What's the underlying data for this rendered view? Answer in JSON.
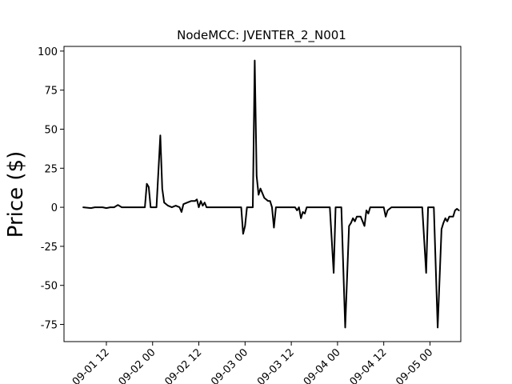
{
  "chart_data": {
    "type": "line",
    "title": "NodeMCC: JVENTER_2_N001",
    "xlabel": "",
    "ylabel": "Price ($)",
    "x_unit": "datetime",
    "xlim": [
      "2022-09-01 01:00",
      "2022-09-05 08:00"
    ],
    "ylim": [
      -86,
      103
    ],
    "x_ticks": [
      {
        "label": "09-01 12",
        "value": "2022-09-01 12:00"
      },
      {
        "label": "09-02 00",
        "value": "2022-09-02 00:00"
      },
      {
        "label": "09-02 12",
        "value": "2022-09-02 12:00"
      },
      {
        "label": "09-03 00",
        "value": "2022-09-03 00:00"
      },
      {
        "label": "09-03 12",
        "value": "2022-09-03 12:00"
      },
      {
        "label": "09-04 00",
        "value": "2022-09-04 00:00"
      },
      {
        "label": "09-04 12",
        "value": "2022-09-04 12:00"
      },
      {
        "label": "09-05 00",
        "value": "2022-09-05 00:00"
      }
    ],
    "y_ticks": [
      100,
      75,
      50,
      25,
      0,
      -25,
      -50,
      -75
    ],
    "grid": false,
    "legend": "none",
    "line_color": "#000000",
    "series": [
      {
        "values": [
          [
            "2022-09-01 06:00",
            0
          ],
          [
            "2022-09-01 08:00",
            -0.5
          ],
          [
            "2022-09-01 09:00",
            0
          ],
          [
            "2022-09-01 11:00",
            0
          ],
          [
            "2022-09-01 12:00",
            -0.5
          ],
          [
            "2022-09-01 13:00",
            0
          ],
          [
            "2022-09-01 14:00",
            0
          ],
          [
            "2022-09-01 15:00",
            1.5
          ],
          [
            "2022-09-01 16:00",
            0
          ],
          [
            "2022-09-01 22:00",
            0
          ],
          [
            "2022-09-01 22:30",
            15
          ],
          [
            "2022-09-01 23:00",
            13
          ],
          [
            "2022-09-01 23:30",
            0
          ],
          [
            "2022-09-02 01:00",
            0
          ],
          [
            "2022-09-02 02:00",
            46
          ],
          [
            "2022-09-02 02:30",
            12
          ],
          [
            "2022-09-02 03:00",
            3
          ],
          [
            "2022-09-02 04:00",
            1
          ],
          [
            "2022-09-02 05:00",
            0
          ],
          [
            "2022-09-02 06:00",
            1
          ],
          [
            "2022-09-02 07:00",
            0
          ],
          [
            "2022-09-02 07:30",
            -3
          ],
          [
            "2022-09-02 08:00",
            2
          ],
          [
            "2022-09-02 09:00",
            3
          ],
          [
            "2022-09-02 10:00",
            4
          ],
          [
            "2022-09-02 11:00",
            4
          ],
          [
            "2022-09-02 11:30",
            5
          ],
          [
            "2022-09-02 12:00",
            0
          ],
          [
            "2022-09-02 12:30",
            4
          ],
          [
            "2022-09-02 13:00",
            1
          ],
          [
            "2022-09-02 13:30",
            3
          ],
          [
            "2022-09-02 14:00",
            0
          ],
          [
            "2022-09-02 15:00",
            0
          ],
          [
            "2022-09-02 23:00",
            0
          ],
          [
            "2022-09-02 23:30",
            -17
          ],
          [
            "2022-09-03 00:00",
            -12
          ],
          [
            "2022-09-03 00:30",
            0
          ],
          [
            "2022-09-03 02:00",
            0
          ],
          [
            "2022-09-03 02:30",
            94
          ],
          [
            "2022-09-03 03:00",
            20
          ],
          [
            "2022-09-03 03:30",
            8
          ],
          [
            "2022-09-03 04:00",
            12
          ],
          [
            "2022-09-03 05:00",
            6
          ],
          [
            "2022-09-03 06:00",
            4
          ],
          [
            "2022-09-03 06:30",
            4
          ],
          [
            "2022-09-03 07:00",
            0
          ],
          [
            "2022-09-03 07:30",
            -13
          ],
          [
            "2022-09-03 08:00",
            0
          ],
          [
            "2022-09-03 13:00",
            0
          ],
          [
            "2022-09-03 13:30",
            -2
          ],
          [
            "2022-09-03 14:00",
            0
          ],
          [
            "2022-09-03 14:30",
            -7
          ],
          [
            "2022-09-03 15:00",
            -3
          ],
          [
            "2022-09-03 15:30",
            -4
          ],
          [
            "2022-09-03 16:00",
            0
          ],
          [
            "2022-09-03 22:00",
            0
          ],
          [
            "2022-09-03 23:00",
            -42
          ],
          [
            "2022-09-03 23:30",
            0
          ],
          [
            "2022-09-04 01:00",
            0
          ],
          [
            "2022-09-04 02:00",
            -77
          ],
          [
            "2022-09-04 03:00",
            -12
          ],
          [
            "2022-09-04 03:30",
            -10
          ],
          [
            "2022-09-04 04:00",
            -7
          ],
          [
            "2022-09-04 04:30",
            -9
          ],
          [
            "2022-09-04 05:00",
            -6
          ],
          [
            "2022-09-04 06:00",
            -6
          ],
          [
            "2022-09-04 07:00",
            -12
          ],
          [
            "2022-09-04 07:30",
            -2
          ],
          [
            "2022-09-04 08:00",
            -4
          ],
          [
            "2022-09-04 08:30",
            0
          ],
          [
            "2022-09-04 12:00",
            0
          ],
          [
            "2022-09-04 12:30",
            -6
          ],
          [
            "2022-09-04 13:00",
            -2
          ],
          [
            "2022-09-04 14:00",
            0
          ],
          [
            "2022-09-04 22:00",
            0
          ],
          [
            "2022-09-04 23:00",
            -42
          ],
          [
            "2022-09-04 23:30",
            0
          ],
          [
            "2022-09-05 01:00",
            0
          ],
          [
            "2022-09-05 02:00",
            -77
          ],
          [
            "2022-09-05 03:00",
            -14
          ],
          [
            "2022-09-05 03:30",
            -10
          ],
          [
            "2022-09-05 04:00",
            -7
          ],
          [
            "2022-09-05 04:30",
            -9
          ],
          [
            "2022-09-05 05:00",
            -6
          ],
          [
            "2022-09-05 06:00",
            -6
          ],
          [
            "2022-09-05 06:30",
            -2
          ],
          [
            "2022-09-05 07:00",
            -1
          ],
          [
            "2022-09-05 07:30",
            -2
          ]
        ]
      }
    ]
  }
}
